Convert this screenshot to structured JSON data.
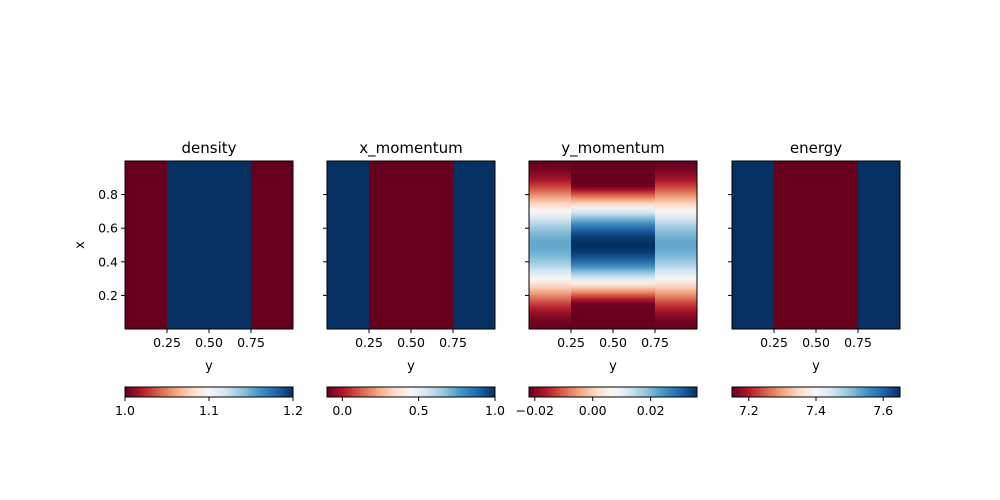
{
  "chart_data": [
    {
      "type": "heatmap",
      "title": "density",
      "xlabel": "y",
      "ylabel": "x",
      "x_ticks": [
        "0.25",
        "0.50",
        "0.75"
      ],
      "y_ticks": [
        "0.8",
        "0.6",
        "0.4",
        "0.2"
      ],
      "pattern": "vertical-bands",
      "bands": [
        {
          "y_range": [
            0.0,
            0.25
          ],
          "value": 1.0
        },
        {
          "y_range": [
            0.25,
            0.75
          ],
          "value": 1.2
        },
        {
          "y_range": [
            0.75,
            1.0
          ],
          "value": 1.0
        }
      ],
      "colormap": "RdBu",
      "colorbar": {
        "min": 1.0,
        "max": 1.2,
        "ticks": [
          1.0,
          1.1,
          1.2
        ],
        "tick_labels": [
          "1.0",
          "1.1",
          "1.2"
        ]
      }
    },
    {
      "type": "heatmap",
      "title": "x_momentum",
      "xlabel": "y",
      "ylabel": "",
      "x_ticks": [
        "0.25",
        "0.50",
        "0.75"
      ],
      "y_ticks": [],
      "pattern": "vertical-bands",
      "bands": [
        {
          "y_range": [
            0.0,
            0.25
          ],
          "value": 1.0
        },
        {
          "y_range": [
            0.25,
            0.75
          ],
          "value": -0.1
        },
        {
          "y_range": [
            0.75,
            1.0
          ],
          "value": 1.0
        }
      ],
      "colormap": "RdBu",
      "colorbar": {
        "min": -0.1,
        "max": 1.0,
        "ticks": [
          0.0,
          0.5,
          1.0
        ],
        "tick_labels": [
          "0.0",
          "0.5",
          "1.0"
        ]
      }
    },
    {
      "type": "heatmap",
      "title": "y_momentum",
      "xlabel": "y",
      "ylabel": "",
      "x_ticks": [
        "0.25",
        "0.50",
        "0.75"
      ],
      "y_ticks": [],
      "pattern": "sinusoidal-perturbation",
      "perturbation": {
        "outer_amplitude": 0.022,
        "inner_amplitude": 0.036,
        "inner_y_range": [
          0.25,
          0.75
        ]
      },
      "colormap": "RdBu",
      "colorbar": {
        "min": -0.022,
        "max": 0.036,
        "ticks": [
          -0.02,
          0.0,
          0.02
        ],
        "tick_labels": [
          "−0.02",
          "0.00",
          "0.02"
        ]
      }
    },
    {
      "type": "heatmap",
      "title": "energy",
      "xlabel": "y",
      "ylabel": "",
      "x_ticks": [
        "0.25",
        "0.50",
        "0.75"
      ],
      "y_ticks": [],
      "pattern": "vertical-bands",
      "bands": [
        {
          "y_range": [
            0.0,
            0.25
          ],
          "value": 7.65
        },
        {
          "y_range": [
            0.25,
            0.75
          ],
          "value": 7.15
        },
        {
          "y_range": [
            0.75,
            1.0
          ],
          "value": 7.65
        }
      ],
      "colormap": "RdBu",
      "colorbar": {
        "min": 7.15,
        "max": 7.65,
        "ticks": [
          7.2,
          7.4,
          7.6
        ],
        "tick_labels": [
          "7.2",
          "7.4",
          "7.6"
        ]
      }
    }
  ],
  "colors": {
    "low": "#67001f",
    "mid": "#f7f7f7",
    "high": "#053061"
  }
}
